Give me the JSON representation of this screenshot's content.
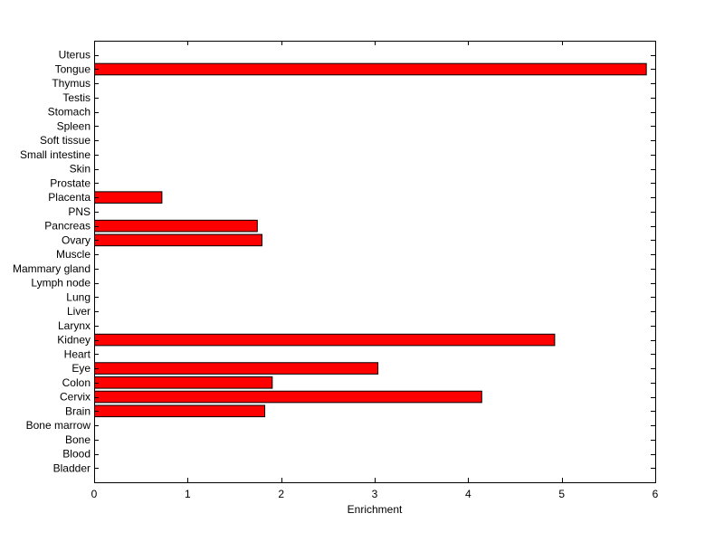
{
  "chart_data": {
    "type": "bar",
    "orientation": "horizontal",
    "categories": [
      "Bladder",
      "Blood",
      "Bone",
      "Bone marrow",
      "Brain",
      "Cervix",
      "Colon",
      "Eye",
      "Heart",
      "Kidney",
      "Larynx",
      "Liver",
      "Lung",
      "Lymph node",
      "Mammary gland",
      "Muscle",
      "Ovary",
      "Pancreas",
      "PNS",
      "Placenta",
      "Prostate",
      "Skin",
      "Small intestine",
      "Soft tissue",
      "Spleen",
      "Stomach",
      "Testis",
      "Thymus",
      "Tongue",
      "Uterus"
    ],
    "values": [
      0,
      0,
      0,
      0,
      1.82,
      4.14,
      1.9,
      3.03,
      0,
      4.92,
      0,
      0,
      0,
      0,
      0,
      0,
      1.79,
      1.74,
      0,
      0.72,
      0,
      0,
      0,
      0,
      0,
      0,
      0,
      0,
      5.9,
      0
    ],
    "xlabel": "Enrichment",
    "ylabel": "",
    "title": "",
    "xlim": [
      0,
      6
    ],
    "xticks": [
      0,
      1,
      2,
      3,
      4,
      5,
      6
    ],
    "grid": false,
    "bar_color": "#ff0000",
    "bar_edge_color": "#000000"
  }
}
